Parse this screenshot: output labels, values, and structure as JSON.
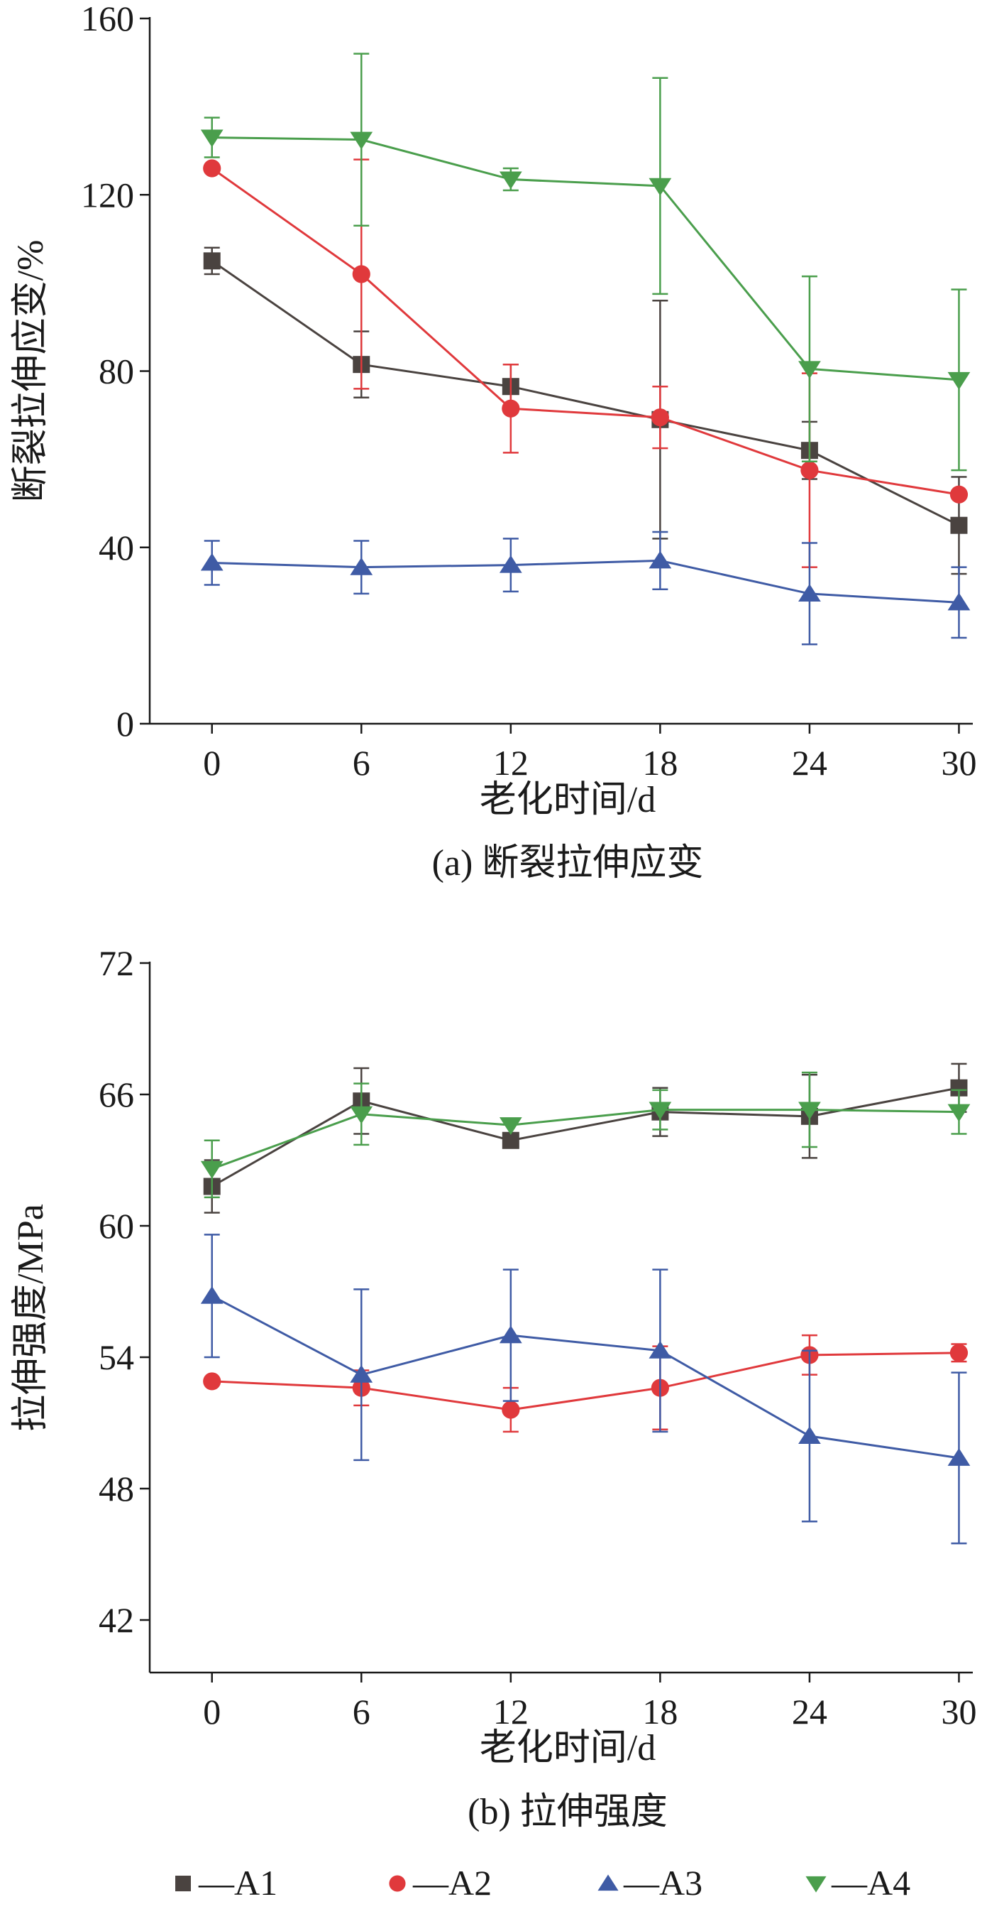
{
  "chart_data": [
    {
      "type": "line",
      "caption": "(a) 断裂拉伸应变",
      "xlabel": "老化时间/d",
      "ylabel": "断裂拉伸应变/%",
      "x": [
        0,
        6,
        12,
        18,
        24,
        30
      ],
      "xlim": [
        -2.5,
        30.5
      ],
      "ylim": [
        0,
        160
      ],
      "xticks": [
        "0",
        "6",
        "12",
        "18",
        "24",
        "30"
      ],
      "yticks": [
        "0",
        "40",
        "80",
        "120",
        "160"
      ],
      "series": [
        {
          "name": "A1",
          "color": "#4a4340",
          "marker": "square",
          "values": [
            105,
            81.5,
            76.5,
            69,
            62,
            45
          ],
          "errors": [
            3,
            7.5,
            5,
            27,
            6.5,
            11
          ]
        },
        {
          "name": "A2",
          "color": "#e0393c",
          "marker": "circle",
          "values": [
            126,
            102,
            71.5,
            69.5,
            57.5,
            52
          ],
          "errors": [
            0,
            26,
            10,
            7,
            22,
            0
          ]
        },
        {
          "name": "A3",
          "color": "#3f5ba5",
          "marker": "triangle-up",
          "values": [
            36.5,
            35.5,
            36,
            37,
            29.5,
            27.5
          ],
          "errors": [
            5,
            6,
            6,
            6.5,
            11.5,
            8
          ]
        },
        {
          "name": "A4",
          "color": "#4a9e4c",
          "marker": "triangle-down",
          "values": [
            133,
            132.5,
            123.5,
            122,
            80.5,
            78
          ],
          "errors": [
            4.5,
            19.5,
            2.5,
            24.5,
            21,
            20.5
          ]
        }
      ]
    },
    {
      "type": "line",
      "caption": "(b) 拉伸强度",
      "xlabel": "老化时间/d",
      "ylabel": "拉伸强度/MPa",
      "x": [
        0,
        6,
        12,
        18,
        24,
        30
      ],
      "xlim": [
        -2.5,
        30.5
      ],
      "ylim": [
        39.6,
        72
      ],
      "xticks": [
        "0",
        "6",
        "12",
        "18",
        "24",
        "30"
      ],
      "yticks": [
        "42",
        "48",
        "54",
        "60",
        "66",
        "72"
      ],
      "series": [
        {
          "name": "A1",
          "color": "#4a4340",
          "marker": "square",
          "values": [
            61.8,
            65.7,
            63.9,
            65.2,
            65,
            66.3
          ],
          "errors": [
            1.2,
            1.5,
            0,
            1.1,
            1.9,
            1.1
          ]
        },
        {
          "name": "A2",
          "color": "#e0393c",
          "marker": "circle",
          "values": [
            52.9,
            52.6,
            51.6,
            52.6,
            54.1,
            54.2
          ],
          "errors": [
            0,
            0.8,
            1,
            1.9,
            0.9,
            0.4
          ]
        },
        {
          "name": "A3",
          "color": "#3f5ba5",
          "marker": "triangle-up",
          "values": [
            56.8,
            53.2,
            55,
            54.3,
            50.4,
            49.4
          ],
          "errors": [
            2.8,
            3.9,
            3,
            3.7,
            3.9,
            3.9
          ]
        },
        {
          "name": "A4",
          "color": "#4a9e4c",
          "marker": "triangle-down",
          "values": [
            62.6,
            65.1,
            64.6,
            65.3,
            65.3,
            65.2
          ],
          "errors": [
            1.3,
            1.4,
            0,
            0.9,
            1.7,
            1
          ]
        }
      ]
    }
  ],
  "legend": {
    "placement": "bottom",
    "items": [
      {
        "label": "—A1",
        "color": "#4a4340",
        "marker": "square"
      },
      {
        "label": "—A2",
        "color": "#e0393c",
        "marker": "circle"
      },
      {
        "label": "—A3",
        "color": "#3f5ba5",
        "marker": "triangle-up"
      },
      {
        "label": "—A4",
        "color": "#4a9e4c",
        "marker": "triangle-down"
      }
    ]
  }
}
